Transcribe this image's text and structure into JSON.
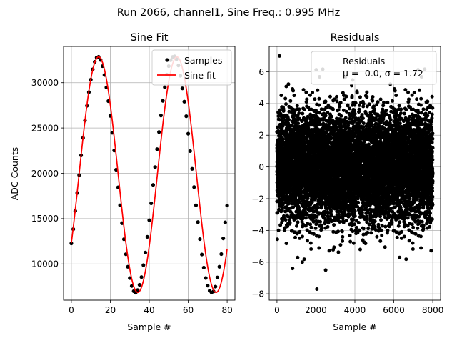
{
  "suptitle": "Run 2066, channel1, Sine Freq.: 0.995 MHz",
  "chart_data": [
    {
      "type": "line",
      "title": "Sine Fit",
      "xlabel": "Sample #",
      "ylabel": "ADC Counts",
      "xlim": [
        -4,
        84
      ],
      "ylim": [
        6000,
        34000
      ],
      "xticks": [
        0,
        20,
        40,
        60,
        80
      ],
      "yticks": [
        10000,
        15000,
        20000,
        25000,
        30000
      ],
      "grid": true,
      "legend_position": "top-right",
      "fit": {
        "amplitude": 13000,
        "offset": 19850,
        "period": 40.2,
        "phase_peak_sample": 14
      },
      "series": [
        {
          "name": "Samples",
          "style": "scatter",
          "color": "#000000",
          "x": [
            0,
            1,
            2,
            3,
            4,
            5,
            6,
            7,
            8,
            9,
            10,
            11,
            12,
            13,
            14,
            15,
            16,
            17,
            18,
            19,
            20,
            21,
            22,
            23,
            24,
            25,
            26,
            27,
            28,
            29,
            30,
            31,
            32,
            33,
            34,
            35,
            36,
            37,
            38,
            39,
            40,
            41,
            42,
            43,
            44,
            45,
            46,
            47,
            48,
            49,
            50,
            51,
            52,
            53,
            54,
            55,
            56,
            57,
            58,
            59,
            60,
            61,
            62,
            63,
            64,
            65,
            66,
            67,
            68,
            69,
            70,
            71,
            72,
            73,
            74,
            75,
            76,
            77,
            78,
            79,
            80
          ],
          "values": [
            12272,
            13836,
            15843,
            17829,
            19803,
            21980,
            23903,
            25813,
            27449,
            28951,
            30338,
            31479,
            32301,
            32769,
            32854,
            32510,
            31827,
            30850,
            29475,
            27965,
            26336,
            24477,
            22516,
            20394,
            18456,
            16472,
            14498,
            12727,
            11070,
            9685,
            8439,
            7561,
            6988,
            6826,
            7117,
            7696,
            8547,
            9864,
            11252,
            12988,
            14828,
            16693,
            18723,
            20680,
            22660,
            24552,
            26379,
            27994,
            29490,
            30889,
            31828,
            32484,
            32836,
            32912,
            32594,
            31896,
            30763,
            29369,
            27907,
            26301,
            24366,
            22449,
            20491,
            18480,
            16471,
            14615,
            12737,
            11041,
            9593,
            8450,
            7609,
            7037,
            6844,
            6968,
            7492,
            8511,
            9687,
            11089,
            12815,
            14585,
            16444
          ]
        },
        {
          "name": "Sine fit",
          "style": "line",
          "color": "#ff0000"
        }
      ]
    },
    {
      "type": "scatter",
      "title": "Residuals",
      "xlabel": "Sample #",
      "ylabel": "",
      "xlim": [
        -400,
        8400
      ],
      "ylim": [
        -8.4,
        7.6
      ],
      "xticks": [
        0,
        2000,
        4000,
        6000,
        8000
      ],
      "yticks": [
        -8,
        -6,
        -4,
        -2,
        0,
        2,
        4,
        6
      ],
      "grid": true,
      "legend_position": "top-right",
      "legend_label": "Residuals",
      "stats_label": "μ = -0.0, σ = 1.72",
      "n_points": 8000,
      "mean": 0.0,
      "sigma": 1.72,
      "outliers": [
        [
          130,
          7.0
        ],
        [
          2050,
          -7.7
        ],
        [
          800,
          -6.4
        ],
        [
          2500,
          -6.5
        ],
        [
          1300,
          -6.0
        ]
      ],
      "color": "#000000"
    }
  ]
}
